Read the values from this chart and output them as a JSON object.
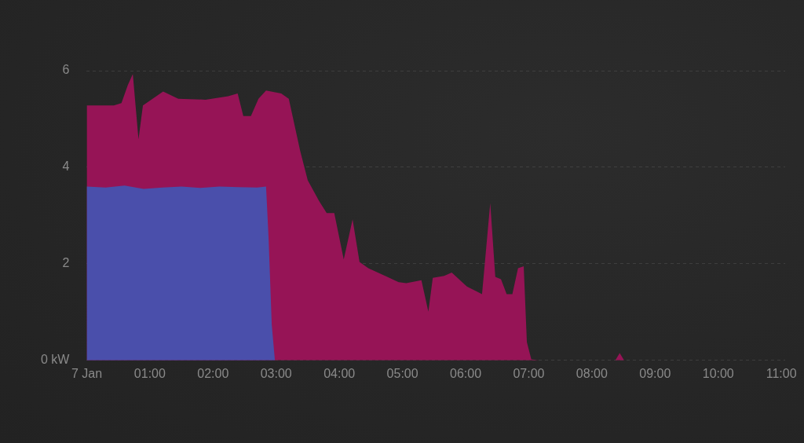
{
  "chart_data": {
    "type": "area",
    "grid": "y",
    "marker": "none",
    "xlim": [
      0,
      11.06
    ],
    "ylim": [
      0,
      6
    ],
    "xticks": [
      {
        "value": 0,
        "label": "7 Jan"
      },
      {
        "value": 1,
        "label": "01:00"
      },
      {
        "value": 2,
        "label": "02:00"
      },
      {
        "value": 3,
        "label": "03:00"
      },
      {
        "value": 4,
        "label": "04:00"
      },
      {
        "value": 5,
        "label": "05:00"
      },
      {
        "value": 6,
        "label": "06:00"
      },
      {
        "value": 7,
        "label": "07:00"
      },
      {
        "value": 8,
        "label": "08:00"
      },
      {
        "value": 9,
        "label": "09:00"
      },
      {
        "value": 10,
        "label": "10:00"
      },
      {
        "value": 11,
        "label": "11:00"
      }
    ],
    "yticks": [
      {
        "value": 0,
        "label": "0 kW"
      },
      2,
      4,
      6
    ],
    "series": [
      {
        "color": "#961456",
        "x": [
          0,
          0.43,
          0.55,
          0.65,
          0.73,
          0.82,
          0.89,
          1.21,
          1.45,
          1.88,
          2.24,
          2.39,
          2.48,
          2.6,
          2.72,
          2.84,
          3.08,
          3.2,
          3.38,
          3.5,
          3.68,
          3.8,
          3.92,
          4.07,
          4.21,
          4.32,
          4.46,
          4.76,
          4.94,
          5.06,
          5.3,
          5.41,
          5.48,
          5.66,
          5.78,
          6.02,
          6.26,
          6.39,
          6.47,
          6.56,
          6.65,
          6.74,
          6.83,
          6.92,
          6.97,
          7.04,
          7.16,
          8.37,
          8.44,
          8.51,
          11.06
        ],
        "values": [
          5.28,
          5.28,
          5.33,
          5.7,
          5.93,
          4.58,
          5.28,
          5.57,
          5.42,
          5.4,
          5.47,
          5.53,
          5.06,
          5.06,
          5.42,
          5.59,
          5.53,
          5.42,
          4.34,
          3.73,
          3.3,
          3.05,
          3.05,
          2.09,
          2.92,
          2.04,
          1.91,
          1.73,
          1.62,
          1.6,
          1.66,
          1.01,
          1.71,
          1.75,
          1.82,
          1.53,
          1.37,
          3.26,
          1.73,
          1.68,
          1.37,
          1.37,
          1.91,
          1.95,
          0.38,
          0.02,
          0,
          0,
          0.15,
          0,
          0
        ]
      },
      {
        "color": "#4a4fab",
        "x": [
          0,
          0.3,
          0.6,
          0.9,
          1.2,
          1.5,
          1.8,
          2.1,
          2.4,
          2.7,
          2.84,
          2.88,
          2.93,
          2.98
        ],
        "values": [
          3.6,
          3.58,
          3.62,
          3.55,
          3.58,
          3.6,
          3.57,
          3.6,
          3.59,
          3.58,
          3.6,
          2.54,
          0.74,
          0
        ]
      }
    ]
  }
}
